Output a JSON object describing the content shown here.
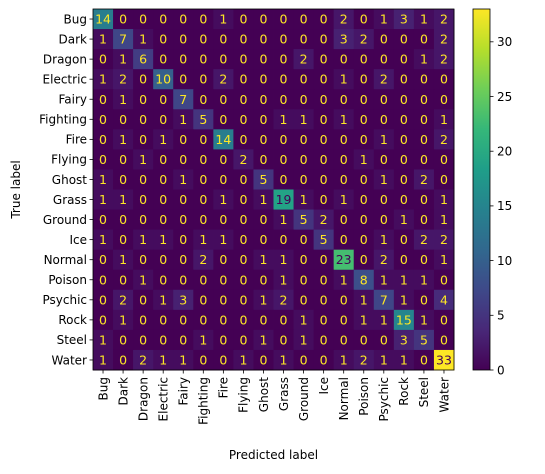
{
  "chart_data": {
    "type": "heatmap",
    "xlabel": "Predicted label",
    "ylabel": "True label",
    "labels": [
      "Bug",
      "Dark",
      "Dragon",
      "Electric",
      "Fairy",
      "Fighting",
      "Fire",
      "Flying",
      "Ghost",
      "Grass",
      "Ground",
      "Ice",
      "Normal",
      "Poison",
      "Psychic",
      "Rock",
      "Steel",
      "Water"
    ],
    "matrix": [
      [
        14,
        0,
        0,
        0,
        0,
        0,
        1,
        0,
        0,
        0,
        0,
        0,
        2,
        0,
        1,
        3,
        1,
        2
      ],
      [
        1,
        7,
        1,
        0,
        0,
        0,
        0,
        0,
        0,
        0,
        0,
        0,
        3,
        2,
        0,
        0,
        0,
        2
      ],
      [
        0,
        1,
        6,
        0,
        0,
        0,
        0,
        0,
        0,
        0,
        2,
        0,
        0,
        0,
        0,
        0,
        1,
        2
      ],
      [
        1,
        2,
        0,
        10,
        0,
        0,
        2,
        0,
        0,
        0,
        0,
        0,
        1,
        0,
        2,
        0,
        0,
        0
      ],
      [
        0,
        1,
        0,
        0,
        7,
        0,
        0,
        0,
        0,
        0,
        0,
        0,
        0,
        0,
        0,
        0,
        0,
        0
      ],
      [
        0,
        0,
        0,
        0,
        1,
        5,
        0,
        0,
        0,
        1,
        1,
        0,
        1,
        0,
        0,
        0,
        0,
        1
      ],
      [
        0,
        1,
        0,
        1,
        0,
        0,
        14,
        0,
        0,
        0,
        0,
        0,
        0,
        0,
        1,
        0,
        0,
        2
      ],
      [
        0,
        0,
        1,
        0,
        0,
        0,
        0,
        2,
        0,
        0,
        0,
        0,
        0,
        1,
        0,
        0,
        0,
        0
      ],
      [
        1,
        0,
        0,
        0,
        1,
        0,
        0,
        0,
        5,
        0,
        0,
        0,
        0,
        0,
        1,
        0,
        2,
        0
      ],
      [
        1,
        1,
        0,
        0,
        0,
        0,
        1,
        0,
        1,
        19,
        1,
        0,
        1,
        0,
        0,
        0,
        0,
        1
      ],
      [
        0,
        0,
        0,
        0,
        0,
        0,
        0,
        0,
        0,
        1,
        5,
        2,
        0,
        0,
        0,
        1,
        0,
        1
      ],
      [
        1,
        0,
        1,
        1,
        0,
        1,
        1,
        0,
        0,
        0,
        0,
        5,
        0,
        0,
        1,
        0,
        2,
        2
      ],
      [
        0,
        1,
        0,
        0,
        0,
        2,
        0,
        0,
        1,
        1,
        0,
        0,
        23,
        0,
        2,
        0,
        0,
        1
      ],
      [
        0,
        0,
        1,
        0,
        0,
        0,
        0,
        0,
        0,
        1,
        0,
        0,
        1,
        8,
        1,
        1,
        1,
        0
      ],
      [
        0,
        2,
        0,
        1,
        3,
        0,
        0,
        0,
        1,
        2,
        0,
        0,
        0,
        1,
        7,
        1,
        0,
        4
      ],
      [
        0,
        1,
        0,
        0,
        0,
        0,
        0,
        0,
        0,
        0,
        1,
        0,
        0,
        1,
        1,
        15,
        1,
        0
      ],
      [
        1,
        0,
        0,
        0,
        0,
        1,
        0,
        0,
        1,
        0,
        1,
        0,
        0,
        0,
        0,
        3,
        5,
        0
      ],
      [
        1,
        0,
        2,
        1,
        1,
        0,
        0,
        1,
        0,
        1,
        0,
        0,
        1,
        2,
        1,
        1,
        0,
        33
      ]
    ],
    "colorbar": {
      "min": 0,
      "max": 33,
      "ticks": [
        0,
        5,
        10,
        15,
        20,
        25,
        30
      ]
    },
    "colormap": [
      "#440154",
      "#482878",
      "#3e4989",
      "#31688e",
      "#26828e",
      "#1f9e89",
      "#35b779",
      "#6ece58",
      "#b5de2b",
      "#fde725"
    ],
    "text_color_dark_cells": "#fde725",
    "text_color_light_cells": "#440154"
  }
}
